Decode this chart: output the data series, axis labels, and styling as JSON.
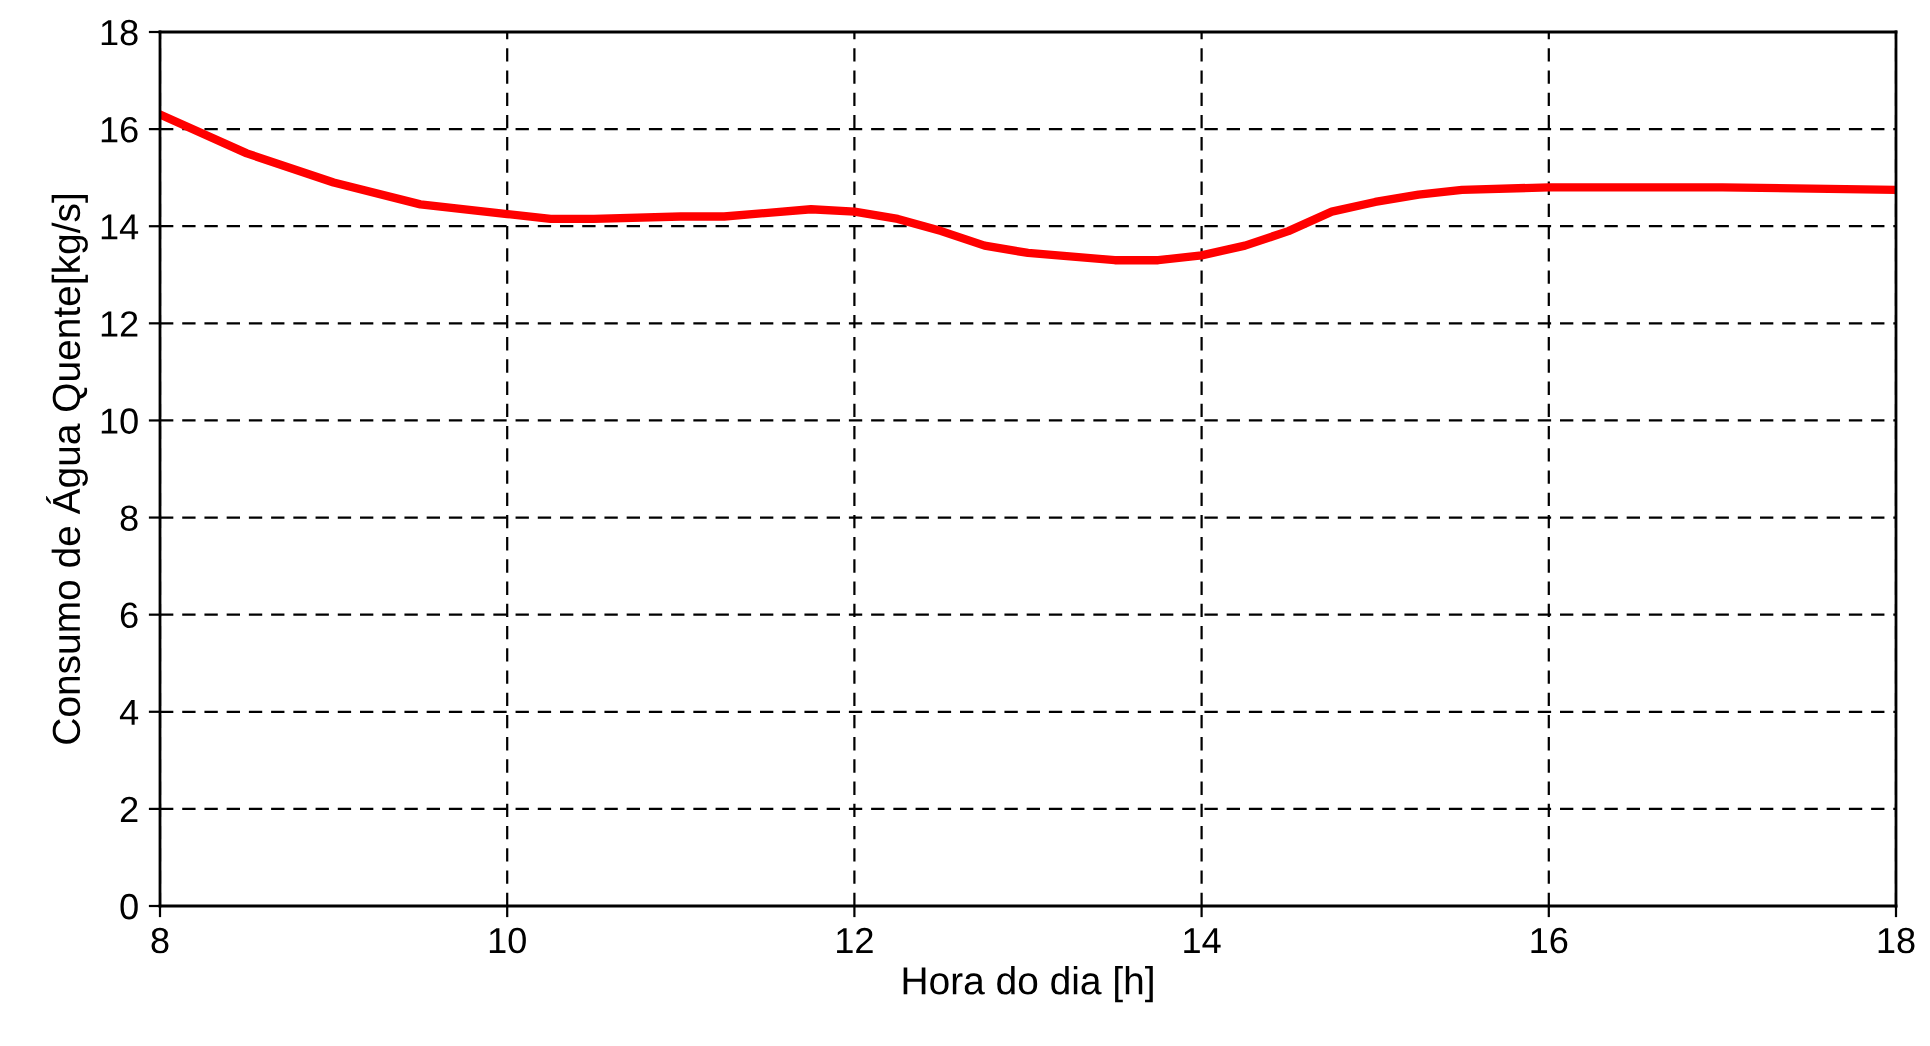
{
  "chart_data": {
    "type": "line",
    "xlabel": "Hora do dia [h]",
    "ylabel": "Consumo de Água Quente[kg/s]",
    "x": [
      8,
      8.5,
      9,
      9.5,
      10,
      10.25,
      10.5,
      11,
      11.25,
      11.75,
      12,
      12.25,
      12.5,
      12.75,
      13,
      13.5,
      13.75,
      14,
      14.25,
      14.5,
      14.75,
      15,
      15.25,
      15.5,
      16,
      17,
      18
    ],
    "series": [
      {
        "color": "#ff0000",
        "values": [
          16.3,
          15.5,
          14.9,
          14.45,
          14.25,
          14.15,
          14.15,
          14.2,
          14.2,
          14.35,
          14.3,
          14.15,
          13.9,
          13.6,
          13.45,
          13.3,
          13.3,
          13.4,
          13.6,
          13.9,
          14.3,
          14.5,
          14.65,
          14.75,
          14.8,
          14.8,
          14.75
        ]
      }
    ],
    "xlim": [
      8,
      18
    ],
    "xticks": [
      8,
      10,
      12,
      14,
      16,
      18
    ],
    "ylim": [
      0,
      18
    ],
    "yticks": [
      0,
      2,
      4,
      6,
      8,
      10,
      12,
      14,
      16,
      18
    ],
    "grid": true,
    "line_style": "solid",
    "marker": "none"
  }
}
